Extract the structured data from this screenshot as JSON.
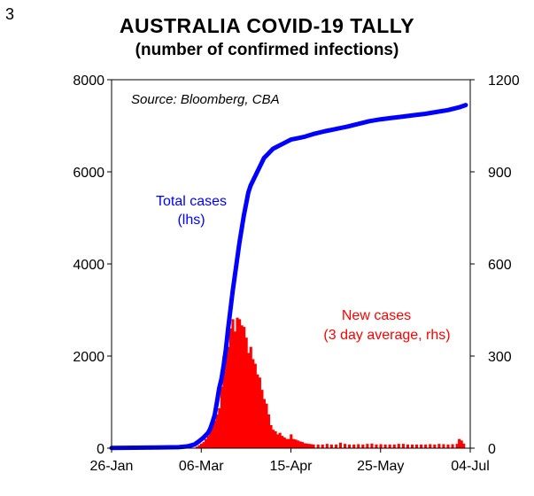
{
  "figure_number": "3",
  "chart_data": {
    "type": "line+bar",
    "title": "AUSTRALIA  COVID-19  TALLY",
    "subtitle": "(number of confirmed infections)",
    "source": "Source: Bloomberg,  CBA",
    "x_tick_labels": [
      "26-Jan",
      "06-Mar",
      "15-Apr",
      "25-May",
      "04-Jul"
    ],
    "x_tick_days": [
      0,
      40,
      80,
      120,
      160
    ],
    "xlim_days": [
      0,
      160
    ],
    "y_left": {
      "ylim": [
        0,
        8000
      ],
      "ticks": [
        0,
        2000,
        4000,
        6000,
        8000
      ],
      "tick_labels": [
        "0",
        "2000",
        "4000",
        "6000",
        "8000"
      ]
    },
    "y_right": {
      "ylim": [
        0,
        1200
      ],
      "ticks": [
        0,
        300,
        600,
        900,
        1200
      ],
      "tick_labels": [
        "0",
        "300",
        "600",
        "900",
        "1200"
      ]
    },
    "annotations": {
      "total_cases_line1": "Total cases",
      "total_cases_line2": "(lhs)",
      "new_cases_line1": "New cases",
      "new_cases_line2": "(3 day average, rhs)"
    },
    "colors": {
      "total": "#0000ff",
      "new": "#ff0000",
      "axis": "#000000"
    },
    "series": [
      {
        "name": "Total cases (lhs)",
        "axis": "left",
        "type": "line",
        "x_days": [
          0,
          20,
          30,
          34,
          37,
          39,
          41,
          43,
          44,
          45,
          46,
          47,
          48,
          49,
          50,
          51,
          52,
          53,
          54,
          55,
          56,
          57,
          58,
          59,
          60,
          61,
          62,
          63,
          64,
          65,
          66,
          67,
          68,
          70,
          72,
          74,
          76,
          78,
          80,
          82,
          84,
          86,
          88,
          90,
          95,
          100,
          105,
          110,
          115,
          120,
          125,
          130,
          135,
          140,
          145,
          150,
          155,
          158
        ],
        "values": [
          5,
          15,
          22,
          40,
          80,
          150,
          230,
          330,
          420,
          560,
          720,
          1000,
          1300,
          1500,
          1800,
          2150,
          2600,
          3000,
          3400,
          3750,
          4100,
          4450,
          4750,
          5050,
          5300,
          5550,
          5700,
          5800,
          5900,
          6000,
          6100,
          6200,
          6300,
          6400,
          6500,
          6550,
          6600,
          6650,
          6700,
          6720,
          6740,
          6760,
          6790,
          6820,
          6880,
          6930,
          6980,
          7040,
          7100,
          7140,
          7170,
          7200,
          7230,
          7260,
          7300,
          7340,
          7400,
          7450
        ]
      },
      {
        "name": "New cases (3 day average, rhs)",
        "axis": "right",
        "type": "bar",
        "x_days": [
          38,
          39,
          40,
          41,
          42,
          43,
          44,
          45,
          46,
          47,
          48,
          49,
          50,
          51,
          52,
          53,
          54,
          55,
          56,
          57,
          58,
          59,
          60,
          61,
          62,
          63,
          64,
          65,
          66,
          67,
          68,
          69,
          70,
          71,
          72,
          73,
          74,
          75,
          76,
          77,
          78,
          79,
          80,
          81,
          82,
          83,
          84,
          85,
          86,
          87,
          88,
          89,
          90,
          92,
          94,
          96,
          98,
          100,
          102,
          104,
          106,
          108,
          110,
          112,
          114,
          116,
          118,
          120,
          122,
          124,
          126,
          128,
          130,
          132,
          134,
          136,
          138,
          140,
          142,
          144,
          146,
          148,
          150,
          152,
          154,
          155,
          156,
          157
        ],
        "values": [
          5,
          10,
          15,
          20,
          30,
          40,
          60,
          75,
          90,
          110,
          130,
          200,
          300,
          310,
          330,
          390,
          420,
          380,
          425,
          420,
          400,
          395,
          360,
          310,
          330,
          290,
          275,
          240,
          230,
          190,
          160,
          145,
          110,
          75,
          60,
          55,
          45,
          50,
          40,
          35,
          30,
          30,
          45,
          30,
          28,
          25,
          22,
          20,
          16,
          15,
          14,
          13,
          12,
          12,
          12,
          14,
          12,
          12,
          18,
          14,
          12,
          12,
          13,
          12,
          14,
          15,
          12,
          13,
          12,
          12,
          12,
          14,
          14,
          12,
          12,
          12,
          12,
          12,
          13,
          12,
          14,
          13,
          12,
          13,
          14,
          30,
          25,
          15
        ]
      }
    ]
  }
}
